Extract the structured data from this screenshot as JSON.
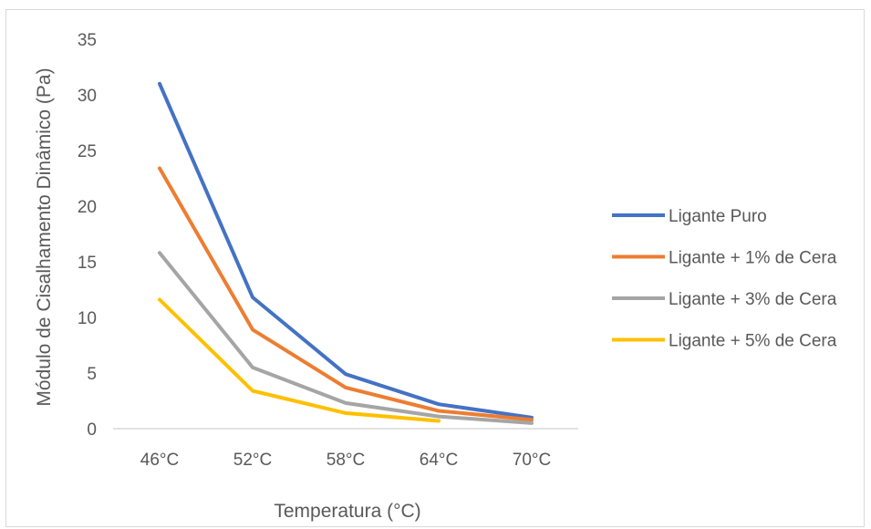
{
  "chart_data": {
    "type": "line",
    "title": "",
    "xlabel": "Temperatura (°C)",
    "ylabel": "Módulo de Cisalhamento Dinâmico (Pa)",
    "categories": [
      "46°C",
      "52°C",
      "58°C",
      "64°C",
      "70°C"
    ],
    "ylim": [
      0,
      35
    ],
    "yticks": [
      0,
      5,
      10,
      15,
      20,
      25,
      30,
      35
    ],
    "grid": false,
    "legend_position": "right",
    "series": [
      {
        "name": "Ligante Puro",
        "color": "#4472C4",
        "values": [
          31.0,
          11.8,
          4.9,
          2.2,
          1.0
        ]
      },
      {
        "name": "Ligante + 1% de Cera",
        "color": "#ED7D31",
        "values": [
          23.4,
          8.9,
          3.7,
          1.6,
          0.8
        ]
      },
      {
        "name": "Ligante + 3% de Cera",
        "color": "#A5A5A5",
        "values": [
          15.8,
          5.5,
          2.3,
          1.1,
          0.5
        ]
      },
      {
        "name": "Ligante + 5% de Cera",
        "color": "#FFC000",
        "values": [
          11.6,
          3.4,
          1.4,
          0.7,
          null
        ]
      }
    ]
  }
}
